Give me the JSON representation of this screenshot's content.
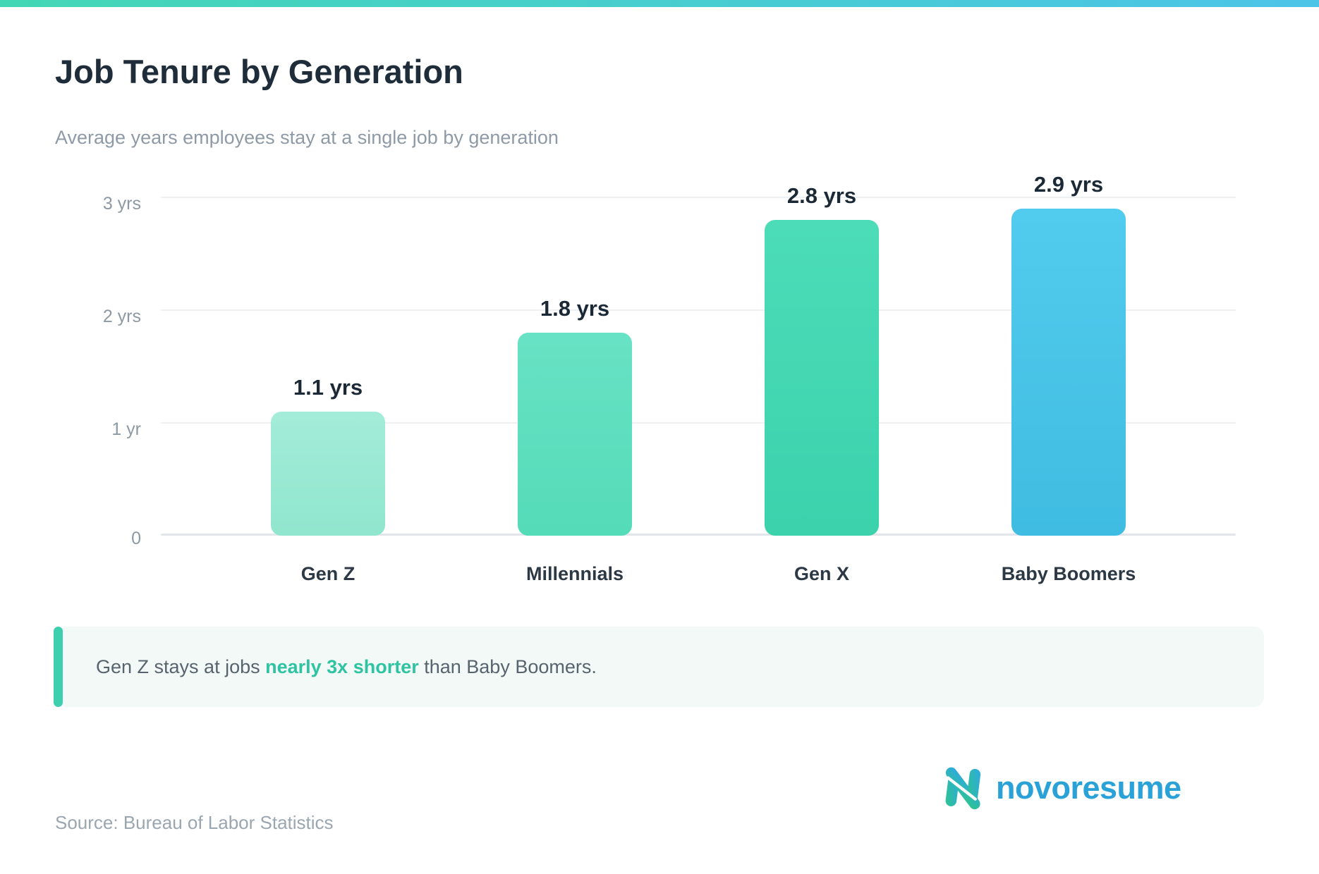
{
  "header": {
    "title": "Job Tenure by Generation",
    "subtitle": "Average years employees stay at a single job by generation"
  },
  "chart_data": {
    "type": "bar",
    "title": "Job Tenure by Generation",
    "subtitle": "Average years employees stay at a single job by generation",
    "categories": [
      "Gen Z",
      "Millennials",
      "Gen X",
      "Baby Boomers"
    ],
    "values": [
      1.1,
      1.8,
      2.8,
      2.9
    ],
    "value_labels": [
      "1.1 yrs",
      "1.8 yrs",
      "2.8 yrs",
      "2.9 yrs"
    ],
    "unit": "years",
    "ylim": [
      0,
      3
    ],
    "y_tick_values": [
      3,
      2,
      1,
      0
    ],
    "y_tick_labels": [
      "3 yrs",
      "2 yrs",
      "1 yr",
      "0"
    ],
    "grid": true,
    "legend": false,
    "bar_gradients": [
      [
        "#a3ecd9",
        "#90e6ce"
      ],
      [
        "#68e2c4",
        "#54dbb8"
      ],
      [
        "#4cdcb8",
        "#3bd2ac"
      ],
      [
        "#52ccee",
        "#3fbce1"
      ]
    ]
  },
  "callout": {
    "prefix": "Gen Z stays at jobs ",
    "highlight": "nearly 3x shorter",
    "suffix": " than Baby Boomers."
  },
  "brand": {
    "wordmark": "novoresume",
    "logomark_icon": "novoresume-n-icon"
  },
  "footer": {
    "source": "Source: Bureau of Labor Statistics"
  },
  "colors": {
    "topbar": [
      "#43d7b5",
      "#4cc4e8"
    ],
    "accent": "#3ed0ae",
    "highlight": "#2fc4a1",
    "logo_text": "#2aa2d8",
    "logo_gradient": [
      "#2ec48e",
      "#2fa9e1"
    ],
    "title_text": "#1e2d39",
    "value_text": "#1b2936"
  }
}
